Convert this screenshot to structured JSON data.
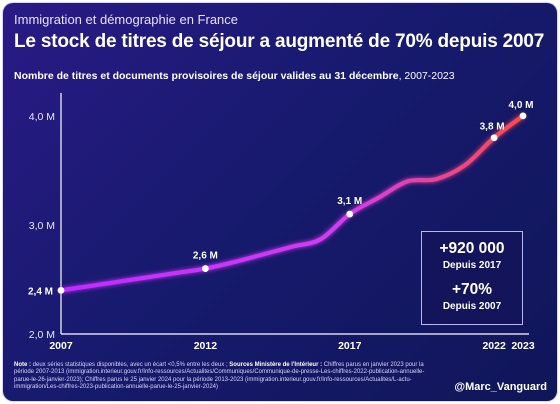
{
  "header": {
    "kicker": "Immigration et démographie en France",
    "title": "Le stock de titres de séjour a augmenté de 70% depuis 2007",
    "subtitle_bold": "Nombre de titres et documents provisoires de séjour valides au 31 décembre",
    "subtitle_range": ", 2007-2023"
  },
  "stats": {
    "increase_value": "+920 000",
    "increase_label": "Depuis 2017",
    "percent_value": "+70%",
    "percent_label": "Depuis 2007"
  },
  "note": {
    "label": "Note :",
    "text1": " deux séries statistiques disponibles, avec un écart <0,5% entre les deux ; ",
    "sources_label": "Sources Ministère de l'Intérieur :",
    "text2": " Chiffres parus en janvier 2023 pour la période 2007-2013 (immigration.interieur.gouv.fr/Info-ressources/Actualites/Communiques/Communique-de-presse-Les-chiffres-2022-publication-annuelle-parue-le-26-janvier-2023); Chiffres parus le 25 janvier 2024 pour la période 2013-2023 (immigration.interieur.gouv.fr/Info-ressources/Actualites/L-actu-immigration/Les-chiffres-2023-publication-annuelle-parue-le-25-janvier-2024)"
  },
  "handle": "@Marc_Vanguard",
  "colors": {
    "line_start": "#c02bff",
    "line_end": "#ff4a4a",
    "background": "#171a6e"
  },
  "chart_data": {
    "type": "line",
    "title": "Le stock de titres de séjour a augmenté de 70% depuis 2007",
    "xlabel": "",
    "ylabel": "",
    "x": [
      2007,
      2008,
      2009,
      2010,
      2011,
      2012,
      2013,
      2014,
      2015,
      2016,
      2017,
      2018,
      2019,
      2020,
      2021,
      2022,
      2023
    ],
    "y": [
      2.4,
      2.44,
      2.48,
      2.52,
      2.56,
      2.6,
      2.66,
      2.73,
      2.8,
      2.87,
      3.1,
      3.25,
      3.4,
      3.42,
      3.55,
      3.8,
      4.0
    ],
    "ylim": [
      2.0,
      4.1
    ],
    "xlim": [
      2007,
      2023
    ],
    "yticks": [
      2.0,
      3.0,
      4.0
    ],
    "ytick_labels": [
      "2,0 M",
      "3,0 M",
      "4,0 M"
    ],
    "xticks": [
      2007,
      2012,
      2017,
      2022,
      2023
    ],
    "xtick_labels": [
      "2007",
      "2012",
      "2017",
      "2022",
      "2023"
    ],
    "labeled_points": [
      {
        "x": 2007,
        "y": 2.4,
        "label": "2,4 M"
      },
      {
        "x": 2012,
        "y": 2.6,
        "label": "2,6 M"
      },
      {
        "x": 2017,
        "y": 3.1,
        "label": "3,1 M"
      },
      {
        "x": 2022,
        "y": 3.8,
        "label": "3,8 M"
      },
      {
        "x": 2023,
        "y": 4.0,
        "label": "4,0 M"
      }
    ],
    "grid": false,
    "legend": "none"
  }
}
